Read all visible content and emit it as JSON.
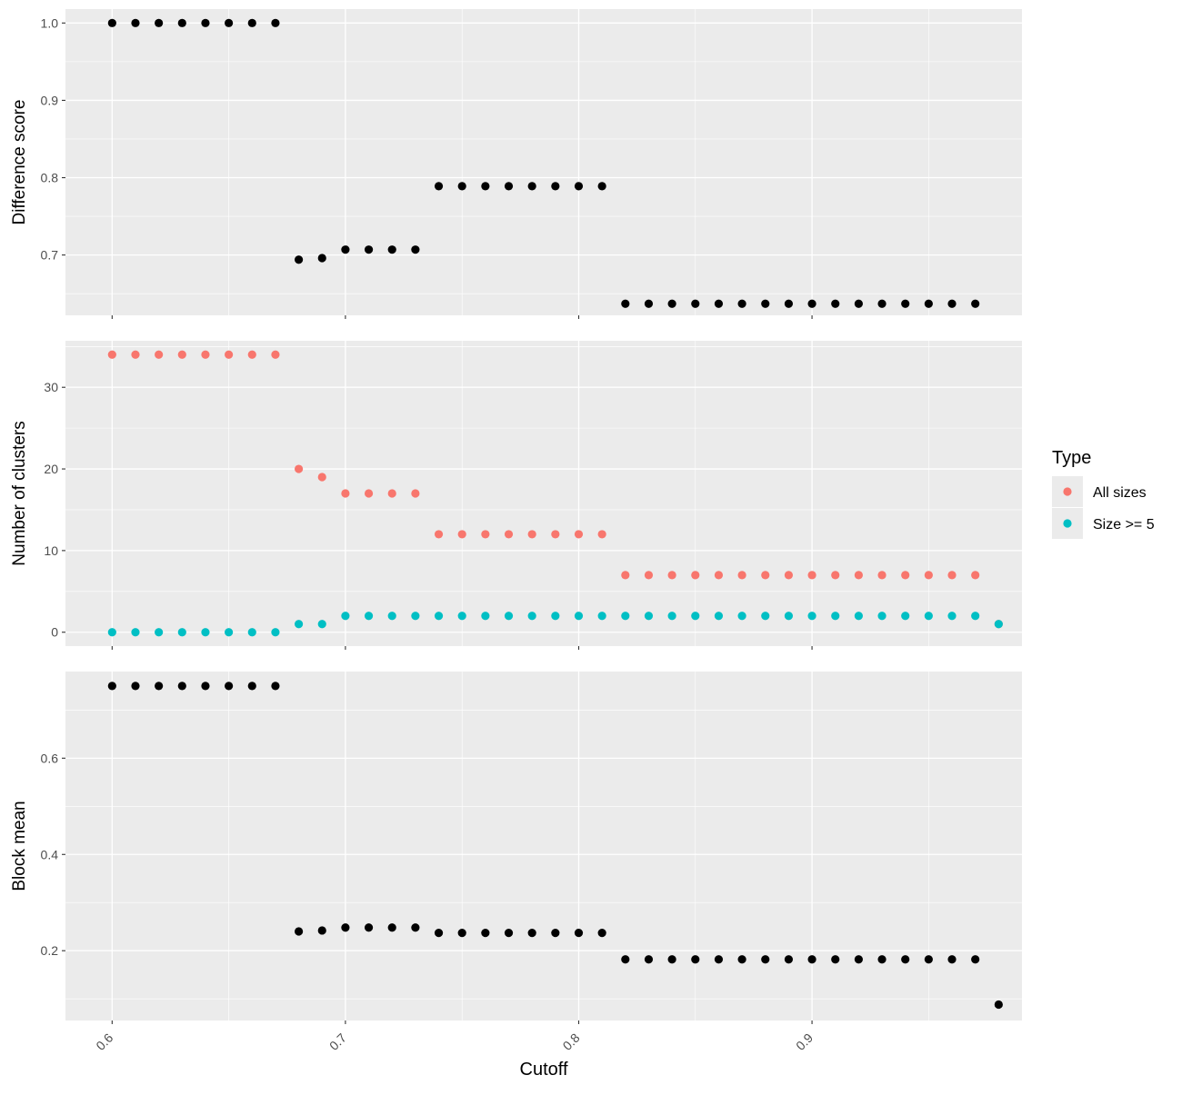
{
  "figure": {
    "xlabel": "Cutoff",
    "colors": {
      "panel_bg": "#EBEBEB",
      "grid": "#FFFFFF",
      "tick_text": "#4D4D4D",
      "black_point": "#000000"
    }
  },
  "legend": {
    "title": "Type",
    "placement": "right",
    "items": [
      {
        "label": "All sizes",
        "color": "#F8766D"
      },
      {
        "label": "Size >= 5",
        "color": "#00BFC4"
      }
    ]
  },
  "chart_data": [
    {
      "type": "scatter",
      "ylabel": "Difference score",
      "xlim": [
        0.58,
        0.99
      ],
      "ylim": [
        0.622,
        1.018
      ],
      "x_ticks": [
        "0.6",
        "0.7",
        "0.8",
        "0.9"
      ],
      "y_ticks": [
        "0.7",
        "0.8",
        "0.9",
        "1.0"
      ],
      "grid": true,
      "series": [
        {
          "color": "#000000",
          "points": [
            [
              0.6,
              1.0
            ],
            [
              0.61,
              1.0
            ],
            [
              0.62,
              1.0
            ],
            [
              0.63,
              1.0
            ],
            [
              0.64,
              1.0
            ],
            [
              0.65,
              1.0
            ],
            [
              0.66,
              1.0
            ],
            [
              0.67,
              1.0
            ],
            [
              0.68,
              0.694
            ],
            [
              0.69,
              0.696
            ],
            [
              0.7,
              0.707
            ],
            [
              0.71,
              0.707
            ],
            [
              0.72,
              0.707
            ],
            [
              0.73,
              0.707
            ],
            [
              0.74,
              0.789
            ],
            [
              0.75,
              0.789
            ],
            [
              0.76,
              0.789
            ],
            [
              0.77,
              0.789
            ],
            [
              0.78,
              0.789
            ],
            [
              0.79,
              0.789
            ],
            [
              0.8,
              0.789
            ],
            [
              0.81,
              0.789
            ],
            [
              0.82,
              0.637
            ],
            [
              0.83,
              0.637
            ],
            [
              0.84,
              0.637
            ],
            [
              0.85,
              0.637
            ],
            [
              0.86,
              0.637
            ],
            [
              0.87,
              0.637
            ],
            [
              0.88,
              0.637
            ],
            [
              0.89,
              0.637
            ],
            [
              0.9,
              0.637
            ],
            [
              0.91,
              0.637
            ],
            [
              0.92,
              0.637
            ],
            [
              0.93,
              0.637
            ],
            [
              0.94,
              0.637
            ],
            [
              0.95,
              0.637
            ],
            [
              0.96,
              0.637
            ],
            [
              0.97,
              0.637
            ]
          ]
        }
      ]
    },
    {
      "type": "scatter",
      "ylabel": "Number of clusters",
      "xlim": [
        0.58,
        0.99
      ],
      "ylim": [
        -1.7,
        35.7
      ],
      "x_ticks": [
        "0.6",
        "0.7",
        "0.8",
        "0.9"
      ],
      "y_ticks": [
        "0",
        "10",
        "20",
        "30"
      ],
      "grid": true,
      "series": [
        {
          "name": "All sizes",
          "color": "#F8766D",
          "points": [
            [
              0.6,
              34
            ],
            [
              0.61,
              34
            ],
            [
              0.62,
              34
            ],
            [
              0.63,
              34
            ],
            [
              0.64,
              34
            ],
            [
              0.65,
              34
            ],
            [
              0.66,
              34
            ],
            [
              0.67,
              34
            ],
            [
              0.68,
              20
            ],
            [
              0.69,
              19
            ],
            [
              0.7,
              17
            ],
            [
              0.71,
              17
            ],
            [
              0.72,
              17
            ],
            [
              0.73,
              17
            ],
            [
              0.74,
              12
            ],
            [
              0.75,
              12
            ],
            [
              0.76,
              12
            ],
            [
              0.77,
              12
            ],
            [
              0.78,
              12
            ],
            [
              0.79,
              12
            ],
            [
              0.8,
              12
            ],
            [
              0.81,
              12
            ],
            [
              0.82,
              7
            ],
            [
              0.83,
              7
            ],
            [
              0.84,
              7
            ],
            [
              0.85,
              7
            ],
            [
              0.86,
              7
            ],
            [
              0.87,
              7
            ],
            [
              0.88,
              7
            ],
            [
              0.89,
              7
            ],
            [
              0.9,
              7
            ],
            [
              0.91,
              7
            ],
            [
              0.92,
              7
            ],
            [
              0.93,
              7
            ],
            [
              0.94,
              7
            ],
            [
              0.95,
              7
            ],
            [
              0.96,
              7
            ],
            [
              0.97,
              7
            ],
            [
              0.98,
              1
            ]
          ]
        },
        {
          "name": "Size >= 5",
          "color": "#00BFC4",
          "points": [
            [
              0.6,
              0
            ],
            [
              0.61,
              0
            ],
            [
              0.62,
              0
            ],
            [
              0.63,
              0
            ],
            [
              0.64,
              0
            ],
            [
              0.65,
              0
            ],
            [
              0.66,
              0
            ],
            [
              0.67,
              0
            ],
            [
              0.68,
              1
            ],
            [
              0.69,
              1
            ],
            [
              0.7,
              2
            ],
            [
              0.71,
              2
            ],
            [
              0.72,
              2
            ],
            [
              0.73,
              2
            ],
            [
              0.74,
              2
            ],
            [
              0.75,
              2
            ],
            [
              0.76,
              2
            ],
            [
              0.77,
              2
            ],
            [
              0.78,
              2
            ],
            [
              0.79,
              2
            ],
            [
              0.8,
              2
            ],
            [
              0.81,
              2
            ],
            [
              0.82,
              2
            ],
            [
              0.83,
              2
            ],
            [
              0.84,
              2
            ],
            [
              0.85,
              2
            ],
            [
              0.86,
              2
            ],
            [
              0.87,
              2
            ],
            [
              0.88,
              2
            ],
            [
              0.89,
              2
            ],
            [
              0.9,
              2
            ],
            [
              0.91,
              2
            ],
            [
              0.92,
              2
            ],
            [
              0.93,
              2
            ],
            [
              0.94,
              2
            ],
            [
              0.95,
              2
            ],
            [
              0.96,
              2
            ],
            [
              0.97,
              2
            ],
            [
              0.98,
              1
            ]
          ]
        }
      ]
    },
    {
      "type": "scatter",
      "ylabel": "Block mean",
      "xlim": [
        0.58,
        0.99
      ],
      "ylim": [
        0.055,
        0.78
      ],
      "x_ticks": [
        "0.6",
        "0.7",
        "0.8",
        "0.9"
      ],
      "y_ticks": [
        "0.2",
        "0.4",
        "0.6"
      ],
      "grid": true,
      "series": [
        {
          "color": "#000000",
          "points": [
            [
              0.6,
              0.75
            ],
            [
              0.61,
              0.75
            ],
            [
              0.62,
              0.75
            ],
            [
              0.63,
              0.75
            ],
            [
              0.64,
              0.75
            ],
            [
              0.65,
              0.75
            ],
            [
              0.66,
              0.75
            ],
            [
              0.67,
              0.75
            ],
            [
              0.68,
              0.24
            ],
            [
              0.69,
              0.242
            ],
            [
              0.7,
              0.248
            ],
            [
              0.71,
              0.248
            ],
            [
              0.72,
              0.248
            ],
            [
              0.73,
              0.248
            ],
            [
              0.74,
              0.237
            ],
            [
              0.75,
              0.237
            ],
            [
              0.76,
              0.237
            ],
            [
              0.77,
              0.237
            ],
            [
              0.78,
              0.237
            ],
            [
              0.79,
              0.237
            ],
            [
              0.8,
              0.237
            ],
            [
              0.81,
              0.237
            ],
            [
              0.82,
              0.182
            ],
            [
              0.83,
              0.182
            ],
            [
              0.84,
              0.182
            ],
            [
              0.85,
              0.182
            ],
            [
              0.86,
              0.182
            ],
            [
              0.87,
              0.182
            ],
            [
              0.88,
              0.182
            ],
            [
              0.89,
              0.182
            ],
            [
              0.9,
              0.182
            ],
            [
              0.91,
              0.182
            ],
            [
              0.92,
              0.182
            ],
            [
              0.93,
              0.182
            ],
            [
              0.94,
              0.182
            ],
            [
              0.95,
              0.182
            ],
            [
              0.96,
              0.182
            ],
            [
              0.97,
              0.182
            ],
            [
              0.98,
              0.088
            ]
          ]
        }
      ]
    }
  ]
}
